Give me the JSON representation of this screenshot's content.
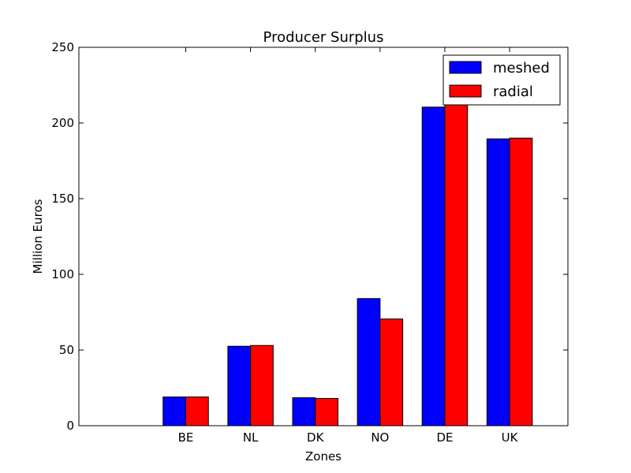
{
  "chart_data": {
    "type": "bar",
    "title": "Producer Surplus",
    "xlabel": "Zones",
    "ylabel": "Million Euros",
    "categories": [
      "BE",
      "NL",
      "DK",
      "NO",
      "DE",
      "UK"
    ],
    "series": [
      {
        "name": "meshed",
        "color": "#0000ff",
        "values": [
          19,
          52.5,
          18.5,
          84,
          210.5,
          189.5
        ]
      },
      {
        "name": "radial",
        "color": "#ff0000",
        "values": [
          19,
          53,
          18,
          70.5,
          219.5,
          190
        ]
      }
    ],
    "ylim": [
      0,
      250
    ],
    "yticks": [
      "0",
      "50",
      "100",
      "150",
      "200",
      "250"
    ],
    "grid": false,
    "legend": "top-right"
  }
}
